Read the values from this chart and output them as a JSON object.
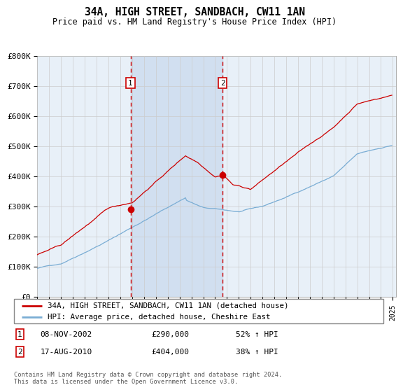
{
  "title": "34A, HIGH STREET, SANDBACH, CW11 1AN",
  "subtitle": "Price paid vs. HM Land Registry's House Price Index (HPI)",
  "legend_line1": "34A, HIGH STREET, SANDBACH, CW11 1AN (detached house)",
  "legend_line2": "HPI: Average price, detached house, Cheshire East",
  "footnote": "Contains HM Land Registry data © Crown copyright and database right 2024.\nThis data is licensed under the Open Government Licence v3.0.",
  "sale1_label": "1",
  "sale1_date": "08-NOV-2002",
  "sale1_price": "£290,000",
  "sale1_hpi": "52% ↑ HPI",
  "sale1_year": 2002.86,
  "sale1_value": 290000,
  "sale2_label": "2",
  "sale2_date": "17-AUG-2010",
  "sale2_price": "£404,000",
  "sale2_hpi": "38% ↑ HPI",
  "sale2_year": 2010.63,
  "sale2_value": 404000,
  "hpi_color": "#7aadd4",
  "price_color": "#cc0000",
  "vline_color": "#cc0000",
  "shade_color": "#ddeeff",
  "bg_color": "#e8f0f8",
  "grid_color": "#cccccc",
  "ylim": [
    0,
    800000
  ],
  "yticks": [
    0,
    100000,
    200000,
    300000,
    400000,
    500000,
    600000,
    700000,
    800000
  ],
  "ytick_labels": [
    "£0",
    "£100K",
    "£200K",
    "£300K",
    "£400K",
    "£500K",
    "£600K",
    "£700K",
    "£800K"
  ],
  "xlim_start": 1995,
  "xlim_end": 2025.3
}
